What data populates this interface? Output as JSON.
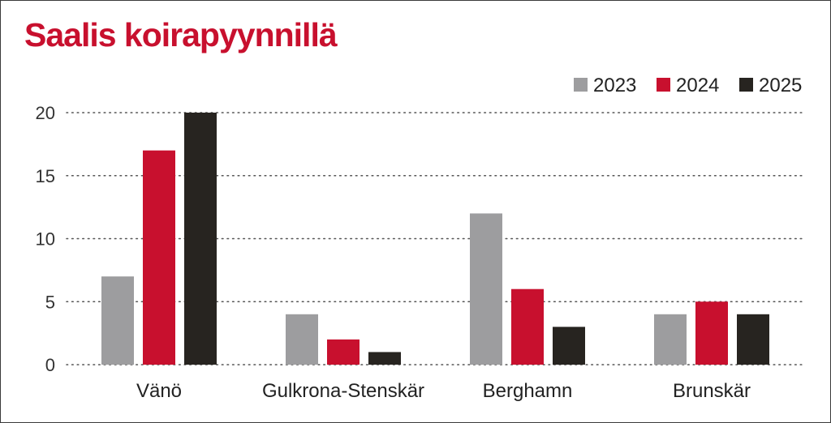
{
  "chart_data": {
    "type": "bar",
    "title": "Saalis koirapyynnillä",
    "xlabel": "",
    "ylabel": "",
    "ylim": [
      0,
      20
    ],
    "yticks": [
      0,
      5,
      10,
      15,
      20
    ],
    "grid": true,
    "legend_position": "top-right",
    "categories": [
      "Vänö",
      "Gulkrona-Stenskär",
      "Berghamn",
      "Brunskär"
    ],
    "series": [
      {
        "name": "2023",
        "color": "#9d9d9f",
        "values": [
          7,
          4,
          12,
          4
        ]
      },
      {
        "name": "2024",
        "color": "#c8102e",
        "values": [
          17,
          2,
          6,
          5
        ]
      },
      {
        "name": "2025",
        "color": "#272420",
        "values": [
          20,
          1,
          3,
          4
        ]
      }
    ]
  }
}
